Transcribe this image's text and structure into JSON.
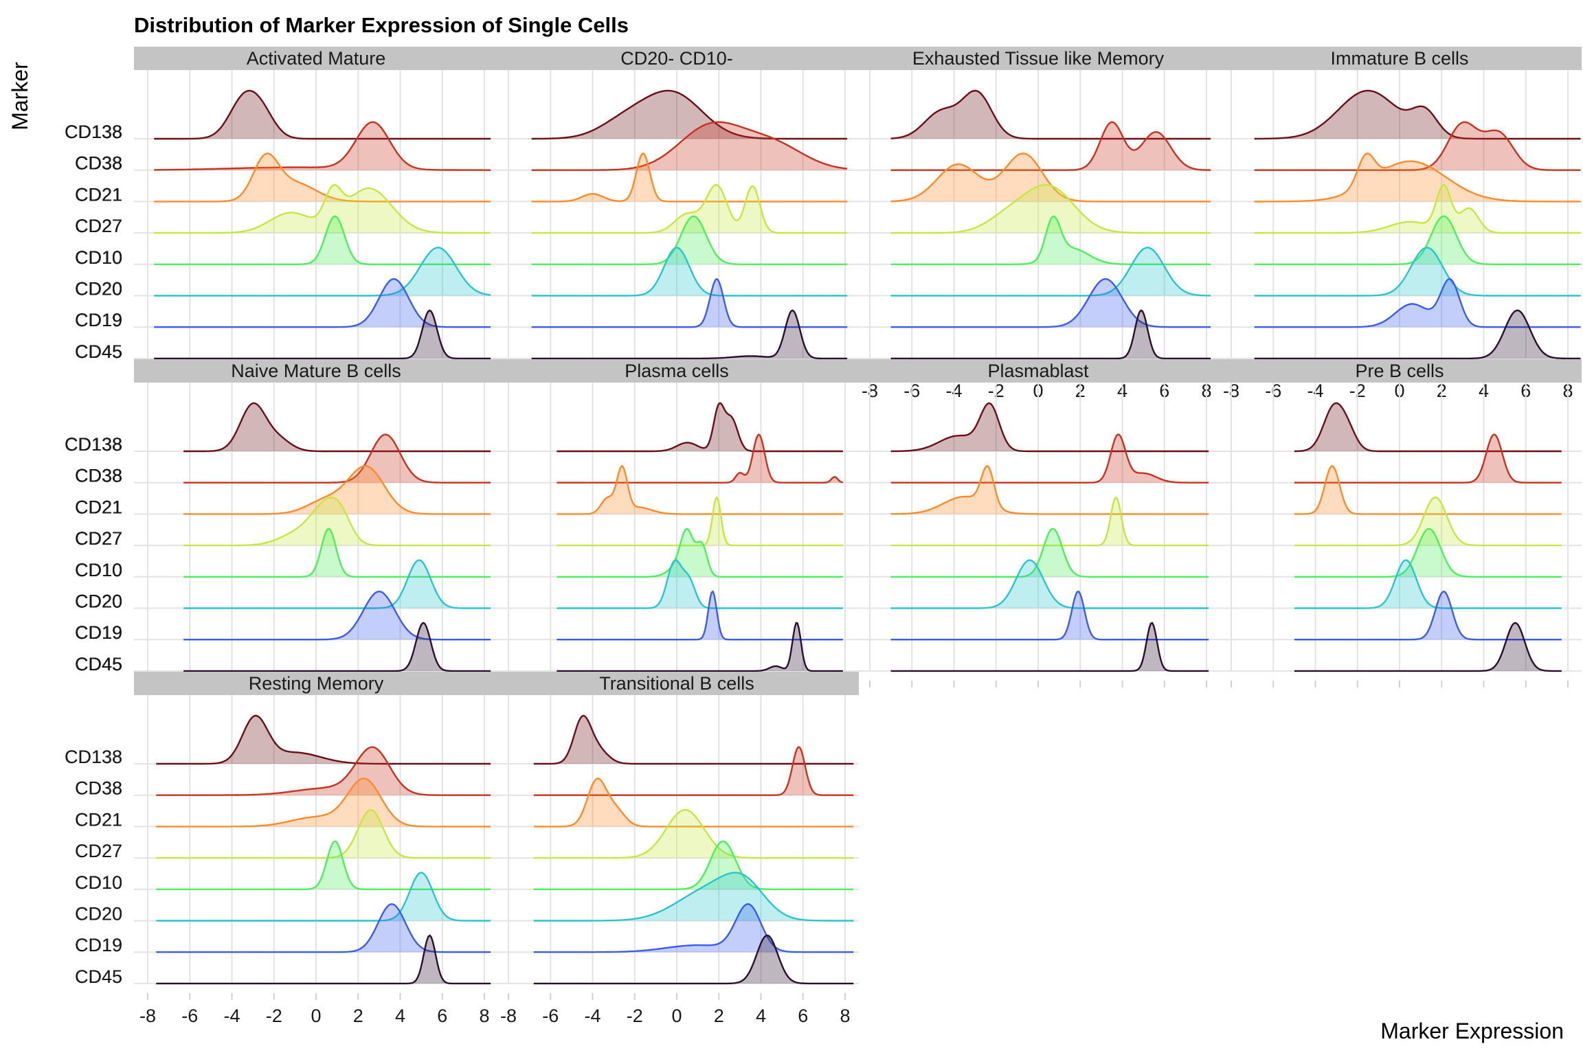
{
  "chart_data": {
    "type": "ridgeline",
    "title": "Distribution of Marker Expression of Single Cells",
    "xlabel": "Marker Expression",
    "ylabel": "Marker",
    "xlim": [
      -8,
      8
    ],
    "xticks": [
      -8,
      -6,
      -4,
      -2,
      0,
      2,
      4,
      6,
      8
    ],
    "grid": true,
    "legend": "none",
    "markers": [
      "CD138",
      "CD38",
      "CD21",
      "CD27",
      "CD10",
      "CD20",
      "CD19",
      "CD45"
    ],
    "colors": {
      "CD138": "#6b0f17",
      "CD38": "#c8321e",
      "CD21": "#ff8a28",
      "CD27": "#c5e840",
      "CD10": "#4cf05a",
      "CD20": "#28c6cc",
      "CD19": "#3a5cf0",
      "CD45": "#2b0f2f"
    },
    "panels": [
      {
        "name": "Activated Mature",
        "range": [
          -7.7,
          8.3
        ],
        "densities": {
          "CD138": [
            [
              -3.4,
              0.7,
              1.0
            ],
            [
              -2.5,
              0.6,
              0.45
            ]
          ],
          "CD38": [
            [
              2.7,
              0.8,
              1.0
            ],
            [
              -1.0,
              3.0,
              0.06
            ]
          ],
          "CD21": [
            [
              -2.4,
              0.6,
              1.0
            ],
            [
              -1.0,
              1.0,
              0.45
            ]
          ],
          "CD27": [
            [
              2.5,
              1.1,
              1.0
            ],
            [
              -1.2,
              1.0,
              0.45
            ],
            [
              0.8,
              0.4,
              0.7
            ]
          ],
          "CD10": [
            [
              0.9,
              0.45,
              1.0
            ]
          ],
          "CD20": [
            [
              5.8,
              0.85,
              1.0
            ]
          ],
          "CD19": [
            [
              3.7,
              0.7,
              1.0
            ]
          ],
          "CD45": [
            [
              5.4,
              0.35,
              1.0
            ]
          ]
        }
      },
      {
        "name": "CD20- CD10-",
        "range": [
          -6.9,
          8.1
        ],
        "densities": {
          "CD138": [
            [
              -0.2,
              1.4,
              1.0
            ],
            [
              -2.5,
              1.2,
              0.35
            ]
          ],
          "CD38": [
            [
              1.6,
              1.5,
              1.0
            ],
            [
              4.5,
              1.5,
              0.6
            ]
          ],
          "CD21": [
            [
              -1.6,
              0.32,
              1.0
            ],
            [
              -4.0,
              0.5,
              0.16
            ]
          ],
          "CD27": [
            [
              1.9,
              0.5,
              1.0
            ],
            [
              3.6,
              0.35,
              1.0
            ],
            [
              0.5,
              0.6,
              0.4
            ]
          ],
          "CD10": [
            [
              0.8,
              0.6,
              1.0
            ]
          ],
          "CD20": [
            [
              0.0,
              0.6,
              1.0
            ]
          ],
          "CD19": [
            [
              1.9,
              0.32,
              1.0
            ]
          ],
          "CD45": [
            [
              5.5,
              0.35,
              1.0
            ],
            [
              3.5,
              0.8,
              0.05
            ]
          ]
        }
      },
      {
        "name": "Exhausted Tissue like Memory",
        "range": [
          -7.0,
          8.2
        ],
        "densities": {
          "CD138": [
            [
              -2.9,
              0.7,
              1.0
            ],
            [
              -4.6,
              0.8,
              0.6
            ]
          ],
          "CD38": [
            [
              3.5,
              0.55,
              1.0
            ],
            [
              5.6,
              0.7,
              0.8
            ]
          ],
          "CD21": [
            [
              -0.7,
              0.9,
              0.9
            ],
            [
              -3.8,
              1.0,
              0.7
            ]
          ],
          "CD27": [
            [
              0.5,
              1.2,
              1.0
            ],
            [
              -1.5,
              1.0,
              0.3
            ]
          ],
          "CD10": [
            [
              0.7,
              0.35,
              1.0
            ],
            [
              1.6,
              0.8,
              0.4
            ]
          ],
          "CD20": [
            [
              5.2,
              0.8,
              1.0
            ]
          ],
          "CD19": [
            [
              3.2,
              0.8,
              1.0
            ]
          ],
          "CD45": [
            [
              4.9,
              0.3,
              1.0
            ]
          ]
        }
      },
      {
        "name": "Immature B cells",
        "range": [
          -6.9,
          8.6
        ],
        "densities": {
          "CD138": [
            [
              -1.5,
              1.4,
              1.0
            ],
            [
              1.2,
              0.6,
              0.5
            ]
          ],
          "CD38": [
            [
              3.0,
              0.7,
              1.0
            ],
            [
              4.7,
              0.7,
              0.8
            ]
          ],
          "CD21": [
            [
              0.5,
              1.7,
              0.7
            ],
            [
              -1.6,
              0.4,
              0.5
            ]
          ],
          "CD27": [
            [
              2.1,
              0.35,
              1.0
            ],
            [
              3.3,
              0.45,
              0.55
            ],
            [
              0.5,
              1.0,
              0.25
            ]
          ],
          "CD10": [
            [
              2.1,
              0.6,
              1.0
            ]
          ],
          "CD20": [
            [
              1.3,
              0.75,
              1.0
            ]
          ],
          "CD19": [
            [
              2.4,
              0.45,
              1.0
            ],
            [
              0.6,
              0.8,
              0.5
            ]
          ],
          "CD45": [
            [
              5.6,
              0.6,
              1.0
            ]
          ]
        }
      },
      {
        "name": "Naive Mature B cells",
        "range": [
          -6.3,
          8.3
        ],
        "densities": {
          "CD138": [
            [
              -3.0,
              0.6,
              1.0
            ],
            [
              -1.8,
              0.6,
              0.25
            ]
          ],
          "CD38": [
            [
              3.3,
              0.7,
              1.0
            ]
          ],
          "CD21": [
            [
              2.4,
              0.85,
              1.0
            ],
            [
              0.5,
              0.9,
              0.3
            ]
          ],
          "CD27": [
            [
              0.5,
              0.7,
              1.0
            ],
            [
              1.2,
              0.5,
              0.5
            ],
            [
              -0.8,
              0.9,
              0.35
            ]
          ],
          "CD10": [
            [
              0.6,
              0.35,
              1.0
            ]
          ],
          "CD20": [
            [
              4.9,
              0.55,
              1.0
            ]
          ],
          "CD19": [
            [
              3.0,
              0.75,
              1.0
            ]
          ],
          "CD45": [
            [
              5.1,
              0.35,
              1.0
            ]
          ]
        }
      },
      {
        "name": "Plasma cells",
        "range": [
          -5.7,
          7.9
        ],
        "densities": {
          "CD138": [
            [
              2.0,
              0.25,
              1.0
            ],
            [
              2.6,
              0.3,
              0.75
            ],
            [
              0.5,
              0.5,
              0.2
            ]
          ],
          "CD38": [
            [
              3.9,
              0.28,
              1.0
            ],
            [
              3.0,
              0.2,
              0.2
            ],
            [
              7.5,
              0.15,
              0.12
            ]
          ],
          "CD21": [
            [
              -2.6,
              0.25,
              1.0
            ],
            [
              -3.3,
              0.3,
              0.35
            ],
            [
              -1.8,
              0.6,
              0.15
            ]
          ],
          "CD27": [
            [
              1.9,
              0.2,
              1.0
            ]
          ],
          "CD10": [
            [
              0.5,
              0.3,
              0.85
            ],
            [
              1.2,
              0.25,
              0.7
            ],
            [
              0.2,
              0.5,
              0.3
            ]
          ],
          "CD20": [
            [
              -0.1,
              0.35,
              1.0
            ],
            [
              0.6,
              0.3,
              0.55
            ]
          ],
          "CD19": [
            [
              1.7,
              0.2,
              1.0
            ]
          ],
          "CD45": [
            [
              5.7,
              0.2,
              1.0
            ],
            [
              4.7,
              0.3,
              0.1
            ]
          ]
        }
      },
      {
        "name": "Plasmablast",
        "range": [
          -7.0,
          8.1
        ],
        "densities": {
          "CD138": [
            [
              -2.3,
              0.45,
              1.0
            ],
            [
              -3.8,
              0.9,
              0.35
            ]
          ],
          "CD38": [
            [
              3.8,
              0.35,
              1.0
            ],
            [
              5.0,
              0.6,
              0.2
            ]
          ],
          "CD21": [
            [
              -2.4,
              0.3,
              1.0
            ],
            [
              -3.5,
              1.0,
              0.45
            ]
          ],
          "CD27": [
            [
              3.7,
              0.25,
              1.0
            ]
          ],
          "CD10": [
            [
              0.7,
              0.45,
              1.0
            ]
          ],
          "CD20": [
            [
              -0.4,
              0.65,
              1.0
            ]
          ],
          "CD19": [
            [
              1.9,
              0.3,
              1.0
            ]
          ],
          "CD45": [
            [
              5.4,
              0.25,
              1.0
            ]
          ]
        }
      },
      {
        "name": "Pre B cells",
        "range": [
          -5.0,
          7.7
        ],
        "densities": {
          "CD138": [
            [
              -3.1,
              0.5,
              1.0
            ],
            [
              -2.4,
              0.4,
              0.3
            ]
          ],
          "CD38": [
            [
              4.5,
              0.38,
              1.0
            ]
          ],
          "CD21": [
            [
              -3.2,
              0.35,
              1.0
            ]
          ],
          "CD27": [
            [
              1.7,
              0.55,
              1.0
            ]
          ],
          "CD10": [
            [
              1.4,
              0.55,
              1.0
            ]
          ],
          "CD20": [
            [
              0.3,
              0.5,
              1.0
            ]
          ],
          "CD19": [
            [
              2.1,
              0.4,
              1.0
            ]
          ],
          "CD45": [
            [
              5.5,
              0.45,
              1.0
            ]
          ]
        }
      },
      {
        "name": "Resting Memory",
        "range": [
          -7.6,
          8.3
        ],
        "densities": {
          "CD138": [
            [
              -2.9,
              0.6,
              1.0
            ],
            [
              -1.0,
              1.2,
              0.25
            ]
          ],
          "CD38": [
            [
              2.7,
              0.8,
              1.0
            ],
            [
              0.5,
              1.5,
              0.15
            ]
          ],
          "CD21": [
            [
              2.3,
              0.8,
              1.0
            ],
            [
              0.0,
              1.2,
              0.2
            ]
          ],
          "CD27": [
            [
              2.6,
              0.6,
              1.0
            ]
          ],
          "CD10": [
            [
              0.9,
              0.38,
              1.0
            ]
          ],
          "CD20": [
            [
              5.0,
              0.55,
              1.0
            ]
          ],
          "CD19": [
            [
              3.6,
              0.65,
              1.0
            ]
          ],
          "CD45": [
            [
              5.4,
              0.28,
              1.0
            ]
          ]
        }
      },
      {
        "name": "Transitional B cells",
        "range": [
          -6.8,
          8.4
        ],
        "densities": {
          "CD138": [
            [
              -4.5,
              0.4,
              1.0
            ],
            [
              -3.8,
              0.5,
              0.35
            ]
          ],
          "CD38": [
            [
              5.8,
              0.3,
              1.0
            ]
          ],
          "CD21": [
            [
              -3.8,
              0.45,
              1.0
            ],
            [
              -2.9,
              0.45,
              0.35
            ]
          ],
          "CD27": [
            [
              0.4,
              0.9,
              1.0
            ]
          ],
          "CD10": [
            [
              2.2,
              0.6,
              1.0
            ]
          ],
          "CD20": [
            [
              1.5,
              1.5,
              0.2
            ],
            [
              3.2,
              1.0,
              0.2
            ]
          ],
          "CD19": [
            [
              3.4,
              0.6,
              1.0
            ],
            [
              1.0,
              1.5,
              0.15
            ]
          ],
          "CD45": [
            [
              4.3,
              0.5,
              1.0
            ]
          ]
        }
      }
    ]
  }
}
